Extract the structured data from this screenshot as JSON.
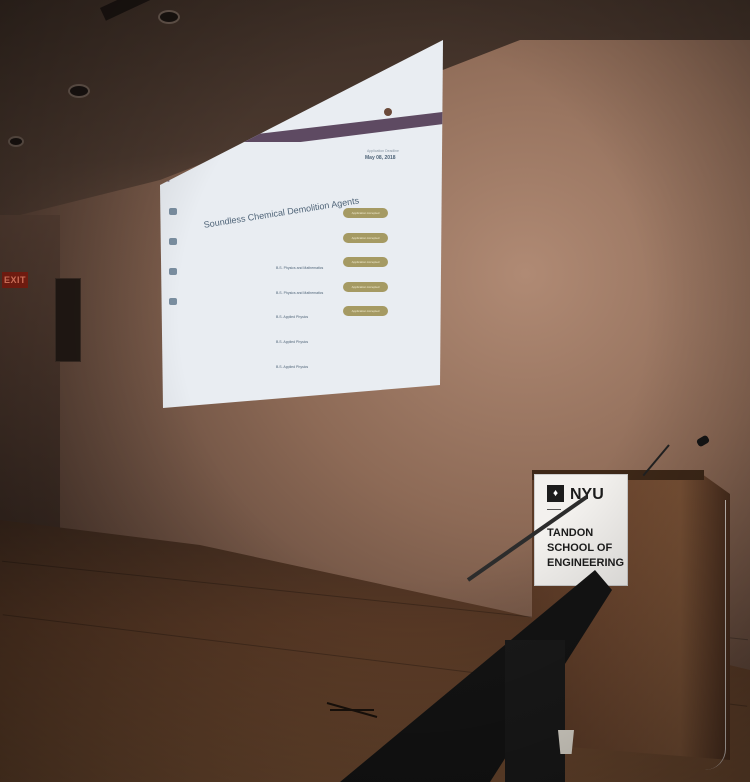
{
  "scene": {
    "exit_sign": "EXIT",
    "podium_sign": {
      "logo_text": "NYU",
      "lines": [
        "TANDON",
        "SCHOOL OF",
        "ENGINEERING"
      ]
    }
  },
  "screen": {
    "title": "Soundless Chemical Demolition Agents",
    "deadline_label": "Application Deadline",
    "deadline": "May 08, 2018",
    "rows": [
      {
        "degree": "B.S. Physics and Mathematics",
        "action": "Application Accepted"
      },
      {
        "degree": "B.S. Physics and Mathematics",
        "action": "Application Accepted"
      },
      {
        "degree": "B.S. Applied Physics",
        "action": "Application Accepted"
      },
      {
        "degree": "B.S. Applied Physics",
        "action": "Application Accepted"
      },
      {
        "degree": "B.S. Applied Physics",
        "action": "Application Accepted"
      }
    ]
  },
  "colors": {
    "screen_header": "#5e4a62",
    "action_button": "#a59a63",
    "wall": "#8d6a56",
    "podium_wood": "#6e4830"
  }
}
